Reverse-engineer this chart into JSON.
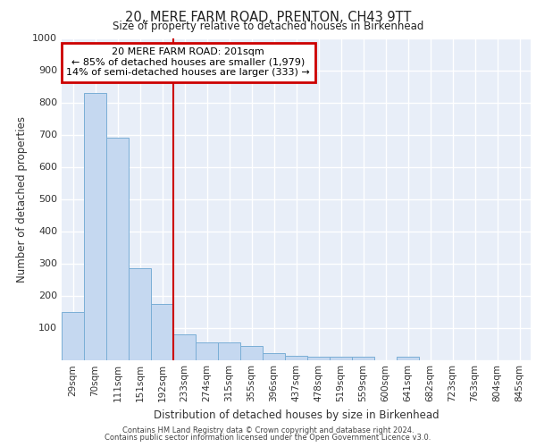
{
  "title": "20, MERE FARM ROAD, PRENTON, CH43 9TT",
  "subtitle": "Size of property relative to detached houses in Birkenhead",
  "xlabel": "Distribution of detached houses by size in Birkenhead",
  "ylabel": "Number of detached properties",
  "categories": [
    "29sqm",
    "70sqm",
    "111sqm",
    "151sqm",
    "192sqm",
    "233sqm",
    "274sqm",
    "315sqm",
    "355sqm",
    "396sqm",
    "437sqm",
    "478sqm",
    "519sqm",
    "559sqm",
    "600sqm",
    "641sqm",
    "682sqm",
    "723sqm",
    "763sqm",
    "804sqm",
    "845sqm"
  ],
  "values": [
    150,
    830,
    690,
    285,
    175,
    80,
    53,
    53,
    42,
    20,
    12,
    10,
    10,
    10,
    0,
    10,
    0,
    0,
    0,
    0,
    0
  ],
  "bar_color": "#c5d8f0",
  "bar_edge_color": "#7aaed6",
  "vline_x": 4.5,
  "vline_color": "#cc0000",
  "annotation_text": "20 MERE FARM ROAD: 201sqm\n← 85% of detached houses are smaller (1,979)\n14% of semi-detached houses are larger (333) →",
  "annotation_box_color": "#ffffff",
  "annotation_box_edge_color": "#cc0000",
  "ylim": [
    0,
    1000
  ],
  "yticks": [
    0,
    100,
    200,
    300,
    400,
    500,
    600,
    700,
    800,
    900,
    1000
  ],
  "footer_line1": "Contains HM Land Registry data © Crown copyright and database right 2024.",
  "footer_line2": "Contains public sector information licensed under the Open Government Licence v3.0.",
  "bg_color": "#ffffff",
  "plot_bg_color": "#e8eef8"
}
